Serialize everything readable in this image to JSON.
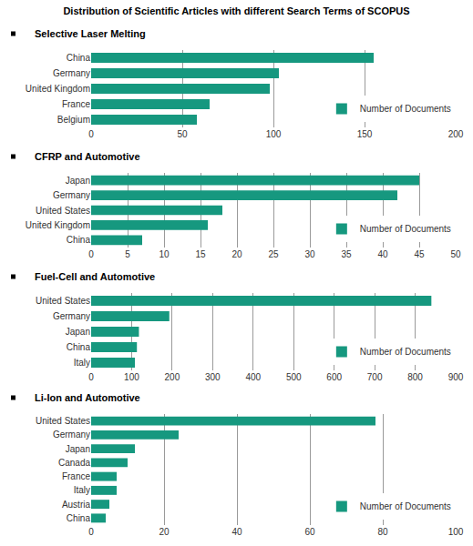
{
  "title": "Distribution of Scientific Articles with different Search Terms of SCOPUS",
  "chart_data": [
    {
      "type": "bar",
      "orientation": "horizontal",
      "title": "Selective Laser Melting",
      "categories": [
        "China",
        "Germany",
        "United Kingdom",
        "France",
        "Belgium"
      ],
      "series": [
        {
          "name": "Number of Documents",
          "color": "#16987f",
          "values": [
            155,
            103,
            98,
            65,
            58
          ]
        }
      ],
      "xlim": [
        0,
        200
      ],
      "xticks": [
        0,
        50,
        100,
        150,
        200
      ],
      "grid": true,
      "legend": "bottom right"
    },
    {
      "type": "bar",
      "orientation": "horizontal",
      "title": "CFRP and Automotive",
      "categories": [
        "Japan",
        "Germany",
        "United States",
        "United Kingdom",
        "China"
      ],
      "series": [
        {
          "name": "Number of Documents",
          "color": "#16987f",
          "values": [
            45,
            42,
            18,
            16,
            7
          ]
        }
      ],
      "xlim": [
        0,
        50
      ],
      "xticks": [
        0,
        5,
        10,
        15,
        20,
        25,
        30,
        35,
        40,
        45,
        50
      ],
      "grid": true,
      "legend": "bottom right"
    },
    {
      "type": "bar",
      "orientation": "horizontal",
      "title": "Fuel-Cell and Automotive",
      "categories": [
        "United States",
        "Germany",
        "Japan",
        "China",
        "Italy"
      ],
      "series": [
        {
          "name": "Number of Documents",
          "color": "#16987f",
          "values": [
            840,
            193,
            118,
            113,
            108
          ]
        }
      ],
      "xlim": [
        0,
        900
      ],
      "xticks": [
        0,
        100,
        200,
        300,
        400,
        500,
        600,
        700,
        800,
        900
      ],
      "grid": true,
      "legend": "bottom right"
    },
    {
      "type": "bar",
      "orientation": "horizontal",
      "title": "Li-Ion and Automotive",
      "categories": [
        "United States",
        "Germany",
        "Japan",
        "Canada",
        "France",
        "Italy",
        "Austria",
        "China"
      ],
      "series": [
        {
          "name": "Number of Documents",
          "color": "#16987f",
          "values": [
            78,
            24,
            12,
            10,
            7,
            7,
            5,
            4
          ]
        }
      ],
      "xlim": [
        0,
        100
      ],
      "xticks": [
        0,
        20,
        40,
        60,
        80,
        100
      ],
      "grid": true,
      "legend": "bottom right"
    }
  ]
}
